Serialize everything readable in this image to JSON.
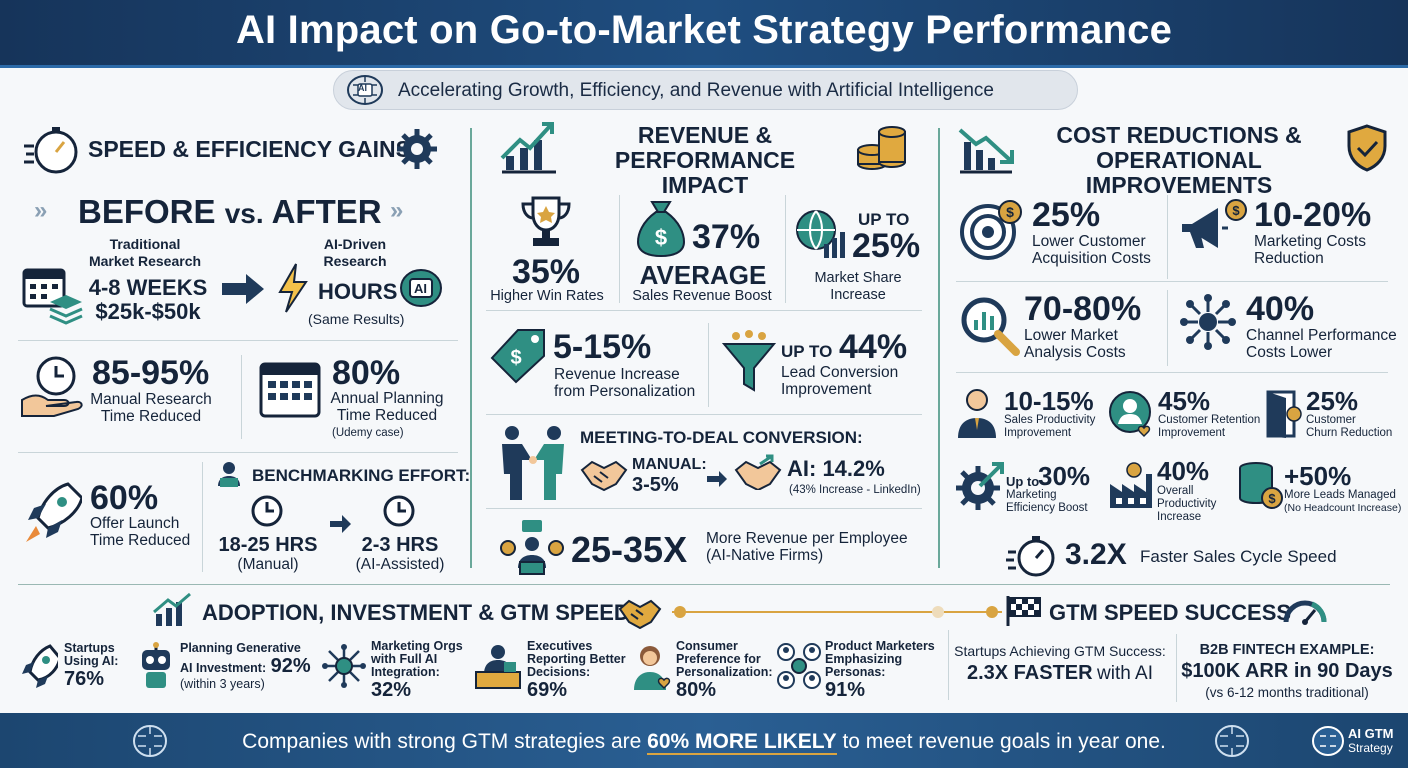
{
  "header": {
    "title": "AI Impact on Go-to-Market Strategy Performance",
    "subtitle": "Accelerating Growth, Efficiency, and Revenue with Artificial Intelligence",
    "brain_badge": "AI"
  },
  "speed": {
    "title": "SPEED & EFFICIENCY GAINS",
    "before_after": {
      "before": "BEFORE",
      "vs": "vs.",
      "after": "AFTER"
    },
    "traditional": {
      "label1": "Traditional",
      "label2": "Market Research",
      "value1": "4-8 WEEKS",
      "value2": "$25k-$50k"
    },
    "ai_driven": {
      "label1": "AI-Driven",
      "label2": "Research",
      "value": "HOURS",
      "note": "(Same Results)",
      "badge": "AI"
    },
    "manual_research": {
      "value": "85-95%",
      "label1": "Manual Research",
      "label2": "Time Reduced"
    },
    "annual_planning": {
      "value": "80%",
      "label1": "Annual Planning",
      "label2": "Time Reduced",
      "note": "(Udemy case)"
    },
    "offer_launch": {
      "value": "60%",
      "label1": "Offer Launch",
      "label2": "Time Reduced"
    },
    "benchmarking": {
      "title": "BENCHMARKING EFFORT:",
      "manual_value": "18-25 HRS",
      "manual_note": "(Manual)",
      "ai_value": "2-3 HRS",
      "ai_note": "(AI-Assisted)"
    }
  },
  "revenue": {
    "title1": "REVENUE &",
    "title2": "PERFORMANCE IMPACT",
    "win": {
      "value": "35%",
      "label": "Higher Win Rates"
    },
    "sales": {
      "value": "37%",
      "value2": "AVERAGE",
      "label": "Sales Revenue Boost"
    },
    "share": {
      "prefix": "UP TO",
      "value": "25%",
      "label1": "Market Share",
      "label2": "Increase"
    },
    "personal": {
      "value": "5-15%",
      "label1": "Revenue Increase",
      "label2": "from Personalization"
    },
    "lead": {
      "prefix": "UP TO",
      "value": "44%",
      "label1": "Lead Conversion",
      "label2": "Improvement"
    },
    "meeting": {
      "title": "MEETING-TO-DEAL CONVERSION:",
      "manual_label": "MANUAL:",
      "manual_value": "3-5%",
      "ai_value": "AI: 14.2%",
      "ai_note": "(43% Increase - LinkedIn)"
    },
    "employee": {
      "value": "25-35X",
      "label1": "More Revenue per Employee",
      "label2": "(AI-Native Firms)"
    }
  },
  "cost": {
    "title1": "COST REDUCTIONS &",
    "title2": "OPERATIONAL IMPROVEMENTS",
    "cac": {
      "value": "25%",
      "label1": "Lower Customer",
      "label2": "Acquisition Costs"
    },
    "mkt": {
      "value": "10-20%",
      "label1": "Marketing Costs",
      "label2": "Reduction"
    },
    "analysis": {
      "value": "70-80%",
      "label1": "Lower Market",
      "label2": "Analysis Costs"
    },
    "channel": {
      "value": "40%",
      "label1": "Channel Performance",
      "label2": "Costs Lower"
    },
    "sales_prod": {
      "value": "10-15%",
      "label1": "Sales Productivity",
      "label2": "Improvement"
    },
    "retention": {
      "value": "45%",
      "label1": "Customer Retention",
      "label2": "Improvement"
    },
    "churn": {
      "value": "25%",
      "label1": "Customer",
      "label2": "Churn Reduction"
    },
    "mkt_eff": {
      "prefix": "Up to",
      "value": "30%",
      "label1": "Marketing",
      "label2": "Efficiency Boost"
    },
    "overall": {
      "value": "40%",
      "label1": "Overall",
      "label2": "Productivity",
      "label3": "Increase"
    },
    "leads": {
      "value": "+50%",
      "label1": "More Leads Managed",
      "label2": "(No Headcount Increase)"
    },
    "cycle": {
      "value": "3.2X",
      "label": "Faster Sales Cycle Speed"
    }
  },
  "adoption": {
    "title": "ADOPTION, INVESTMENT & GTM SPEED",
    "items": [
      {
        "l1": "Startups",
        "l2": "Using AI:",
        "v": "76%"
      },
      {
        "l1": "Planning Generative",
        "l2": "AI Investment:",
        "v": "92%",
        "note": "(within 3 years)"
      },
      {
        "l1": "Marketing Orgs",
        "l2": "with Full AI",
        "l3": "Integration:",
        "v": "32%"
      },
      {
        "l1": "Executives",
        "l2": "Reporting Better",
        "l3": "Decisions:",
        "v": "69%"
      },
      {
        "l1": "Consumer",
        "l2": "Preference for",
        "l3": "Personalization:",
        "v": "80%"
      },
      {
        "l1": "Product Marketers",
        "l2": "Emphasizing",
        "l3": "Personas:",
        "v": "91%"
      }
    ]
  },
  "gtm": {
    "title": "GTM SPEED SUCCESS",
    "startups_label": "Startups Achieving GTM Success:",
    "startups_value": "2.3X FASTER",
    "startups_suffix": "with AI",
    "fintech_title": "B2B FINTECH EXAMPLE:",
    "fintech_value": "$100K ARR in 90 Days",
    "fintech_note": "(vs 6-12 months traditional)"
  },
  "footer": {
    "pre": "Companies with strong GTM strategies are ",
    "highlight": "60% MORE LIKELY",
    "post": " to meet revenue goals in year one.",
    "logo1": "AI GTM",
    "logo2": "Strategy"
  },
  "colors": {
    "navy": "#15243a",
    "teal": "#2f8f83",
    "gold": "#d9a441",
    "header": "#1f4e80"
  }
}
